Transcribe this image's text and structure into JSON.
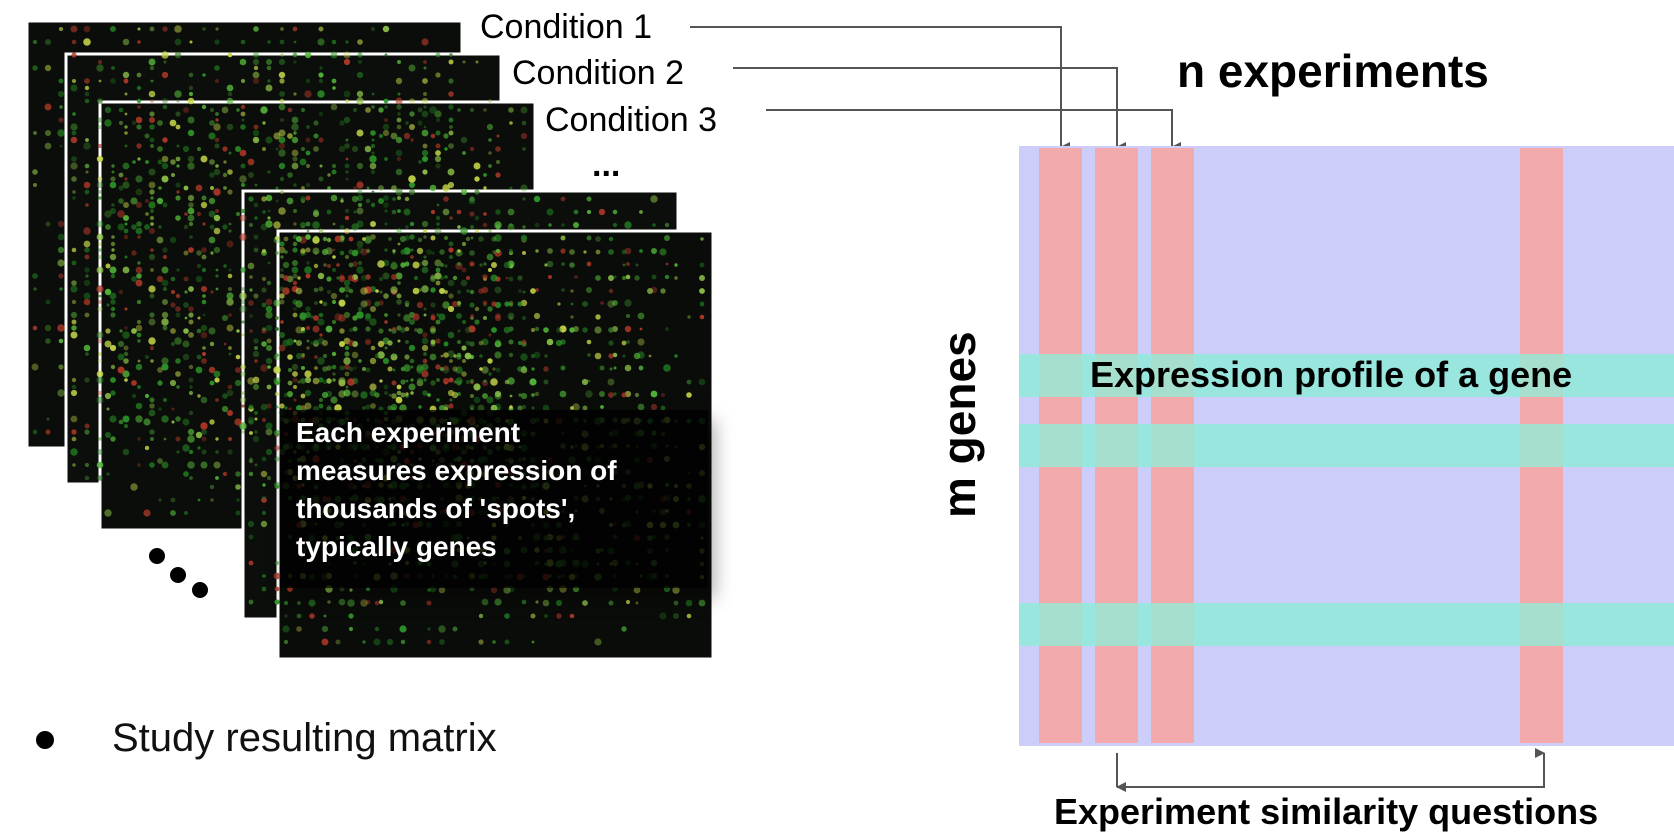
{
  "conditions": [
    "Condition 1",
    "Condition 2",
    "Condition 3"
  ],
  "more_conditions": "...",
  "more_arrays": "...",
  "callout_lines": [
    "Each experiment",
    "measures expression of",
    "thousands of 'spots',",
    "typically genes"
  ],
  "bullet_text": "Study resulting matrix",
  "matrix": {
    "column_label": "n experiments",
    "row_label": "m genes",
    "row_annotation": "Expression profile of a gene",
    "bottom_annotation": "Experiment similarity questions"
  },
  "colors": {
    "matrix_bg": "#cccdf8",
    "column_band": "#f3aaad",
    "row_band": "#99e6df",
    "overlap": "#a6dfcd",
    "arrow": "#555555"
  }
}
